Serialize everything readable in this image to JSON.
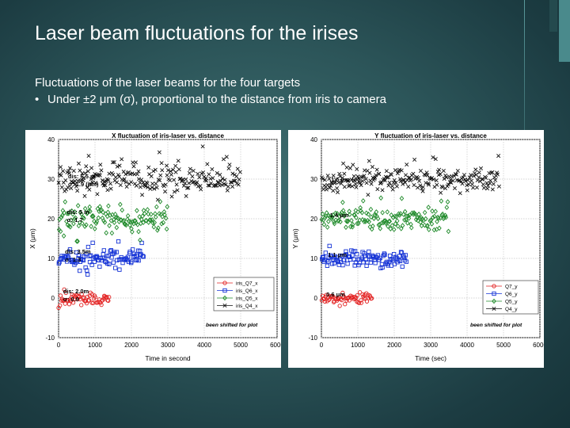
{
  "slide": {
    "title": "Laser beam fluctuations for the irises",
    "line1": "Fluctuations of the laser beams for the four targets",
    "bullet": "•",
    "line2": "Under ±2 μm (σ), proportional to the distance from iris to camera"
  },
  "colors": {
    "red": "#e32020",
    "blue": "#1432d6",
    "green": "#1f8a2a",
    "black": "#111111",
    "background": "#2c5559"
  },
  "chart_data": [
    {
      "type": "scatter",
      "title": "X fluctuation of iris-laser vs. distance",
      "xlabel": "Time in second",
      "ylabel": "X (μm)",
      "xlim": [
        0,
        6000
      ],
      "ylim": [
        -10,
        40
      ],
      "xticks": [
        0,
        1000,
        2000,
        3000,
        4000,
        5000,
        6000
      ],
      "yticks": [
        -10,
        0,
        10,
        20,
        30,
        40
      ],
      "grid": true,
      "legend_position": "bottom-right",
      "series": [
        {
          "name": "iris_Q7_x",
          "color": "red",
          "marker": "circle",
          "x_range": [
            0,
            1400
          ],
          "center": 0,
          "sigma": 0.9
        },
        {
          "name": "iris_Q6_x",
          "color": "blue",
          "marker": "square",
          "x_range": [
            0,
            2350
          ],
          "center": 10,
          "sigma": 1.3
        },
        {
          "name": "iris_Q5_x",
          "color": "green",
          "marker": "diamond",
          "x_range": [
            0,
            3000
          ],
          "center": 20,
          "sigma": 1.7
        },
        {
          "name": "iris_Q4_x",
          "color": "black",
          "marker": "cross",
          "x_range": [
            0,
            5000
          ],
          "center": 30,
          "sigma": 1.9
        }
      ],
      "annotations": [
        {
          "line1": "dis: 6.5 m",
          "line2": "σ: 1.9 (μm)",
          "series": "iris_Q4_x"
        },
        {
          "line1": "dis: 5 m",
          "line2": "σ: 1.7",
          "series": "iris_Q5_x"
        },
        {
          "line1": "dis: 3.5m",
          "line2": "σ: 1.3",
          "series": "iris_Q6_x"
        },
        {
          "line1": "dis: 2.0m",
          "line2": "σ: 0.9",
          "series": "iris_Q7_x"
        }
      ],
      "note": "been shifted for plot"
    },
    {
      "type": "scatter",
      "title": "Y fluctuation of iris-laser vs. distance",
      "xlabel": "Time (sec)",
      "ylabel": "Y (μm)",
      "xlim": [
        0,
        6000
      ],
      "ylim": [
        -10,
        40
      ],
      "xticks": [
        0,
        1000,
        2000,
        3000,
        4000,
        5000,
        6000
      ],
      "yticks": [
        -10,
        0,
        10,
        20,
        30,
        40
      ],
      "grid": true,
      "legend_position": "bottom-right",
      "series": [
        {
          "name": "Q7_y",
          "color": "red",
          "marker": "circle",
          "x_range": [
            0,
            1400
          ],
          "center": 0,
          "sigma": 0.6
        },
        {
          "name": "Q6_y",
          "color": "blue",
          "marker": "square",
          "x_range": [
            0,
            2350
          ],
          "center": 10,
          "sigma": 1.1
        },
        {
          "name": "Q5_y",
          "color": "green",
          "marker": "diamond",
          "x_range": [
            0,
            3500
          ],
          "center": 20,
          "sigma": 1.4
        },
        {
          "name": "Q4_y",
          "color": "black",
          "marker": "cross",
          "x_range": [
            0,
            4900
          ],
          "center": 30,
          "sigma": 1.5
        }
      ],
      "annotations": [
        {
          "line1": "1.5 μm (σ)",
          "line2": "",
          "series": "Q4_y"
        },
        {
          "line1": "1.4 μm",
          "line2": "",
          "series": "Q5_y"
        },
        {
          "line1": "1.1 μm",
          "line2": "",
          "series": "Q6_y"
        },
        {
          "line1": "0.6 μm",
          "line2": "",
          "series": "Q7_y"
        }
      ],
      "note": "been shifted for plot"
    }
  ]
}
